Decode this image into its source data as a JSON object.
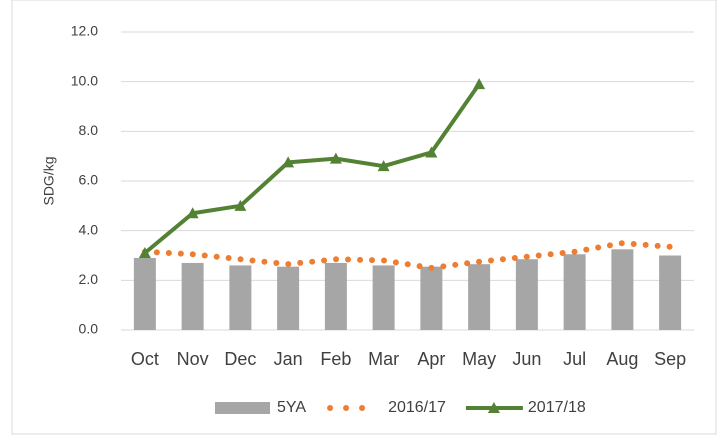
{
  "chart_data": {
    "type": "combo",
    "y_label": "SDG/kg",
    "categories": [
      "Oct",
      "Nov",
      "Dec",
      "Jan",
      "Feb",
      "Mar",
      "Apr",
      "May",
      "Jun",
      "Jul",
      "Aug",
      "Sep"
    ],
    "series": [
      {
        "name": "5YA",
        "type": "bar",
        "color": "#a6a6a6",
        "values": [
          2.9,
          2.7,
          2.6,
          2.55,
          2.7,
          2.6,
          2.55,
          2.65,
          2.85,
          3.05,
          3.25,
          3.0
        ]
      },
      {
        "name": "2016/17",
        "type": "line",
        "style": "dotted",
        "color": "#ed7d31",
        "values": [
          3.15,
          3.05,
          2.85,
          2.65,
          2.85,
          2.8,
          2.5,
          2.75,
          2.95,
          3.15,
          3.5,
          3.35
        ]
      },
      {
        "name": "2017/18",
        "type": "line",
        "style": "solid",
        "marker": "triangle",
        "color": "#548235",
        "values": [
          3.1,
          4.7,
          5.0,
          6.75,
          6.9,
          6.6,
          7.15,
          9.9,
          null,
          null,
          null,
          null
        ]
      }
    ],
    "ylim": [
      0,
      12
    ],
    "yticks": [
      {
        "value": 0,
        "label": "0.0"
      },
      {
        "value": 2,
        "label": "2.0"
      },
      {
        "value": 4,
        "label": "4.0"
      },
      {
        "value": 6,
        "label": "6.0"
      },
      {
        "value": 8,
        "label": "8.0"
      },
      {
        "value": 10,
        "label": "10.0"
      },
      {
        "value": 12,
        "label": "12.0"
      }
    ],
    "grid": true
  }
}
